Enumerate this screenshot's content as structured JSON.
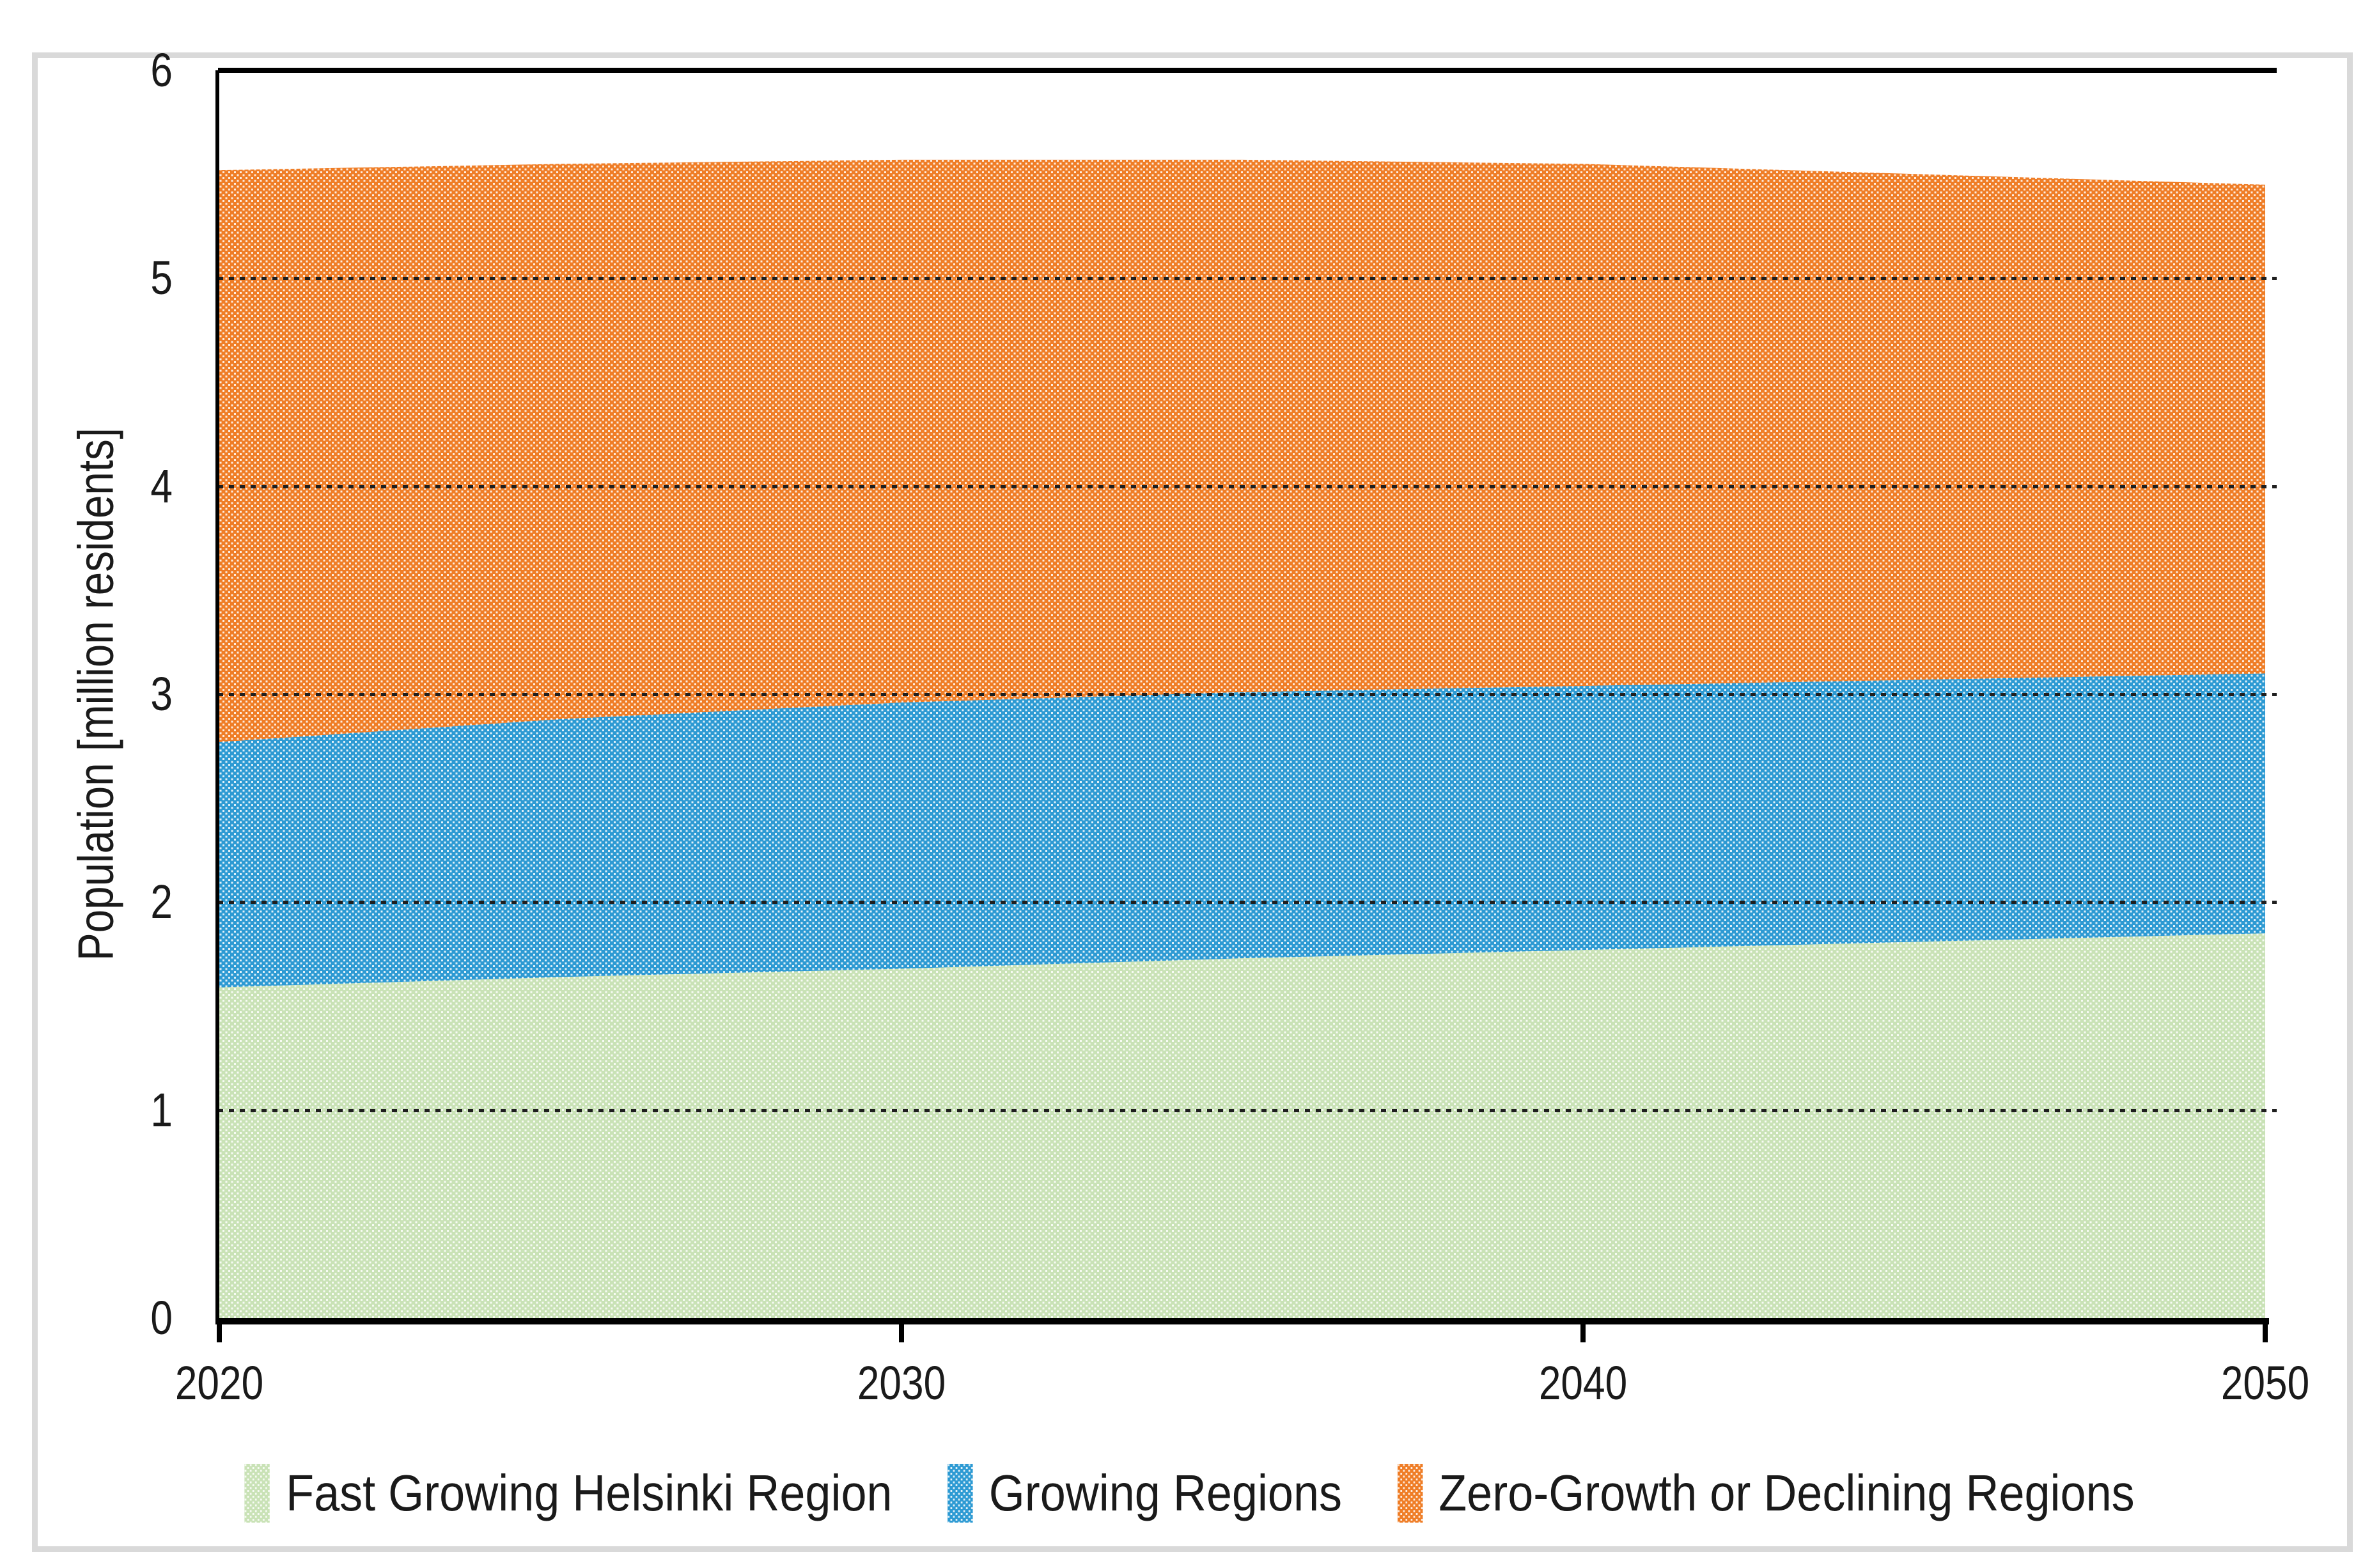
{
  "chart_data": {
    "type": "area",
    "stacked": true,
    "title": "",
    "xlabel": "",
    "ylabel": "Population [million residents]",
    "xlim": [
      2020,
      2050
    ],
    "ylim": [
      0,
      6
    ],
    "x_ticks": [
      2020,
      2030,
      2040,
      2050
    ],
    "y_ticks": [
      0,
      1,
      2,
      3,
      4,
      5,
      6
    ],
    "grid": "horizontal-dotted",
    "legend_position": "bottom",
    "x": [
      2020,
      2025,
      2030,
      2035,
      2040,
      2045,
      2050
    ],
    "series": [
      {
        "name": "Fast Growing Helsinki Region",
        "color": "#c9e2b6",
        "values": [
          1.59,
          1.64,
          1.68,
          1.73,
          1.77,
          1.81,
          1.85
        ]
      },
      {
        "name": "Growing Regions",
        "color": "#2d9ad3",
        "values": [
          1.18,
          1.24,
          1.28,
          1.28,
          1.27,
          1.26,
          1.25
        ]
      },
      {
        "name": "Zero-Growth or Declining Regions",
        "color": "#ef7d26",
        "values": [
          2.75,
          2.67,
          2.61,
          2.56,
          2.51,
          2.43,
          2.35
        ]
      }
    ]
  },
  "style": {
    "axis_color": "#000000",
    "text_color": "#1a1a1a",
    "frame_color": "#d9d9d9",
    "pattern_dot_color": "#ffffff"
  }
}
